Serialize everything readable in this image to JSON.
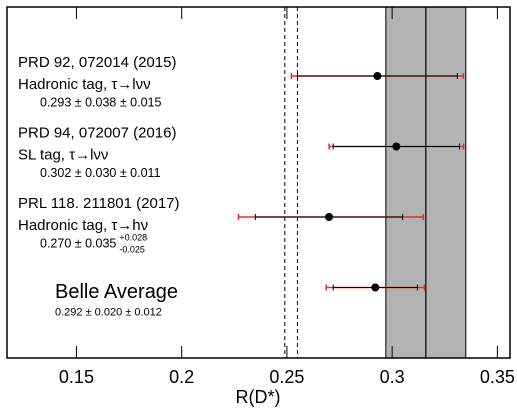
{
  "chart_data": {
    "type": "errorbar",
    "x_label": "R(D*)",
    "xlim": [
      0.117,
      0.356
    ],
    "xticks": [
      0.15,
      0.2,
      0.25,
      0.3,
      0.35
    ],
    "reference_band": [
      0.297,
      0.335
    ],
    "reference_center": 0.316,
    "reference_dashed": [
      0.249,
      0.255
    ],
    "measurements": [
      {
        "name": "PRD 92, 072014 (2015)",
        "tag": "Hadronic tag, τ→lνν",
        "result": "0.293 ± 0.038 ± 0.015",
        "value": 0.293,
        "stat_err": 0.038,
        "syst_err_plus": 0.015,
        "syst_err_minus": 0.015
      },
      {
        "name": "PRD 94, 072007 (2016)",
        "tag": "SL tag, τ→lνν",
        "result": "0.302 ± 0.030 ± 0.011",
        "value": 0.302,
        "stat_err": 0.03,
        "syst_err_plus": 0.011,
        "syst_err_minus": 0.011
      },
      {
        "name": "PRL 118. 211801 (2017)",
        "tag": "Hadronic tag, τ→hν",
        "result": "0.270 ± 0.035",
        "result_sup": "+0.028",
        "result_sub": "-0.025",
        "value": 0.27,
        "stat_err": 0.035,
        "syst_err_plus": 0.028,
        "syst_err_minus": 0.025
      },
      {
        "name": "Belle Average",
        "result": "0.292 ± 0.020 ± 0.012",
        "value": 0.292,
        "stat_err": 0.02,
        "syst_err_plus": 0.012,
        "syst_err_minus": 0.012
      }
    ]
  }
}
